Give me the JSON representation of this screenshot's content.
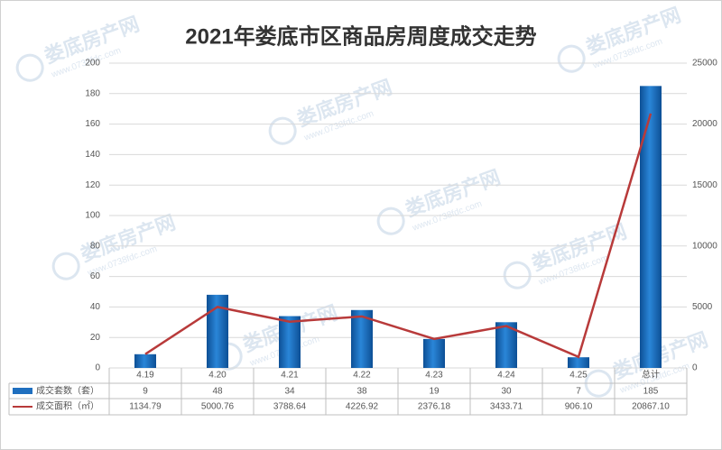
{
  "chart_data": {
    "type": "combo",
    "title": "2021年娄底市区商品房周度成交走势",
    "watermark": {
      "name": "娄底房产网",
      "url": "www.0738fdc.com"
    },
    "categories": [
      "4.19",
      "4.20",
      "4.21",
      "4.22",
      "4.23",
      "4.24",
      "4.25",
      "总计"
    ],
    "series": [
      {
        "name": "成交套数（套）",
        "color": "#1f6fbf",
        "values": [
          9,
          48,
          34,
          38,
          19,
          30,
          7,
          185
        ]
      },
      {
        "name": "成交面积（㎡）",
        "color": "#b83a3a",
        "axis": "y2",
        "values": [
          1134.79,
          5000.76,
          3788.64,
          4226.92,
          2376.18,
          3433.71,
          906.1,
          20867.1
        ],
        "value_labels": [
          "1134.79",
          "5000.76",
          "3788.64",
          "4226.92",
          "2376.18",
          "3433.71",
          "906.10",
          "20867.10"
        ]
      }
    ],
    "ylim": [
      0,
      200
    ],
    "yticks": [
      0,
      20,
      40,
      60,
      80,
      100,
      120,
      140,
      160,
      180,
      200
    ],
    "y2lim": [
      0,
      25000
    ],
    "y2ticks": [
      0,
      5000,
      10000,
      15000,
      20000,
      25000
    ],
    "grid": true
  }
}
